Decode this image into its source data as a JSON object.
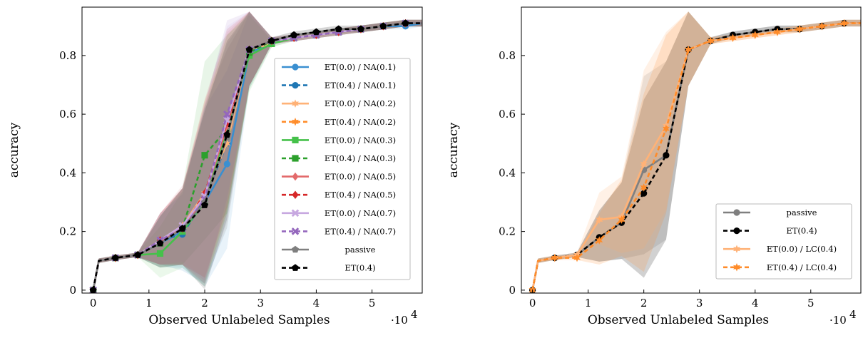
{
  "chart_data": [
    {
      "type": "line",
      "xlabel": "Observed Unlabeled Samples",
      "ylabel": "accuracy",
      "x_exponent_label": "·10",
      "x_exponent_power": "4",
      "xlim": [
        -0.2,
        5.9
      ],
      "ylim": [
        -0.01,
        0.965
      ],
      "xticks": [
        0,
        1,
        2,
        3,
        4,
        5
      ],
      "xtick_labels": [
        "0",
        "1",
        "2",
        "3",
        "4",
        "5"
      ],
      "yticks": [
        0,
        0.2,
        0.4,
        0.6,
        0.8
      ],
      "ytick_labels": [
        "0",
        "0.2",
        "0.4",
        "0.6",
        "0.8"
      ],
      "legend_position": "lower-right",
      "series": [
        {
          "name": "ET(0.0) / NA(0.1)",
          "color": "#3a8fd0",
          "dash": "solid",
          "marker": "circle",
          "x": [
            0,
            0.1,
            0.4,
            0.8,
            1.2,
            1.6,
            2.0,
            2.4,
            2.8,
            3.2,
            3.6,
            4.0,
            4.4,
            4.8,
            5.2,
            5.6,
            5.9
          ],
          "y": [
            0.0,
            0.1,
            0.11,
            0.12,
            0.16,
            0.2,
            0.3,
            0.43,
            0.81,
            0.84,
            0.86,
            0.87,
            0.88,
            0.89,
            0.9,
            0.9,
            0.91
          ]
        },
        {
          "name": "ET(0.4) / NA(0.1)",
          "color": "#1f77b4",
          "dash": "dashed",
          "marker": "circle",
          "x": [
            0,
            0.1,
            0.4,
            0.8,
            1.2,
            1.6,
            2.0,
            2.4,
            2.8,
            3.2,
            3.6,
            4.0,
            4.4,
            4.8,
            5.2,
            5.6,
            5.9
          ],
          "y": [
            0.0,
            0.1,
            0.11,
            0.12,
            0.17,
            0.19,
            0.31,
            0.5,
            0.82,
            0.85,
            0.86,
            0.87,
            0.88,
            0.89,
            0.9,
            0.91,
            0.91
          ]
        },
        {
          "name": "ET(0.0) / NA(0.2)",
          "color": "#ffb277",
          "dash": "solid",
          "marker": "star",
          "x": [
            0,
            0.1,
            0.4,
            0.8,
            1.2,
            1.6,
            2.0,
            2.4,
            2.8,
            3.2,
            3.6,
            4.0,
            4.4,
            4.8,
            5.2,
            5.6,
            5.9
          ],
          "y": [
            0.0,
            0.1,
            0.11,
            0.12,
            0.17,
            0.22,
            0.33,
            0.5,
            0.82,
            0.84,
            0.86,
            0.87,
            0.88,
            0.89,
            0.9,
            0.91,
            0.91
          ]
        },
        {
          "name": "ET(0.4) / NA(0.2)",
          "color": "#ff8c2a",
          "dash": "dashed",
          "marker": "star",
          "x": [
            0,
            0.1,
            0.4,
            0.8,
            1.2,
            1.6,
            2.0,
            2.4,
            2.8,
            3.2,
            3.6,
            4.0,
            4.4,
            4.8,
            5.2,
            5.6,
            5.9
          ],
          "y": [
            0.0,
            0.1,
            0.11,
            0.12,
            0.17,
            0.21,
            0.31,
            0.55,
            0.82,
            0.85,
            0.86,
            0.87,
            0.88,
            0.89,
            0.9,
            0.91,
            0.91
          ]
        },
        {
          "name": "ET(0.0) / NA(0.3)",
          "color": "#45c14a",
          "dash": "solid",
          "marker": "square",
          "x": [
            0,
            0.1,
            0.4,
            0.8,
            1.2,
            1.6,
            2.0,
            2.4,
            2.8,
            3.2,
            3.6,
            4.0,
            4.4,
            4.8,
            5.2,
            5.6,
            5.9
          ],
          "y": [
            0.0,
            0.1,
            0.11,
            0.12,
            0.125,
            0.2,
            0.3,
            0.55,
            0.8,
            0.84,
            0.86,
            0.87,
            0.88,
            0.89,
            0.9,
            0.91,
            0.91
          ]
        },
        {
          "name": "ET(0.4) / NA(0.3)",
          "color": "#2ca02c",
          "dash": "dashed",
          "marker": "square",
          "x": [
            0,
            0.1,
            0.4,
            0.8,
            1.2,
            1.6,
            2.0,
            2.4,
            2.8,
            3.2,
            3.6,
            4.0,
            4.4,
            4.8,
            5.2,
            5.6,
            5.9
          ],
          "y": [
            0.0,
            0.1,
            0.11,
            0.12,
            0.16,
            0.21,
            0.46,
            0.55,
            0.81,
            0.85,
            0.86,
            0.87,
            0.88,
            0.89,
            0.9,
            0.91,
            0.91
          ]
        },
        {
          "name": "ET(0.0) / NA(0.5)",
          "color": "#e36a6b",
          "dash": "solid",
          "marker": "diamond",
          "x": [
            0,
            0.1,
            0.4,
            0.8,
            1.2,
            1.6,
            2.0,
            2.4,
            2.8,
            3.2,
            3.6,
            4.0,
            4.4,
            4.8,
            5.2,
            5.6,
            5.9
          ],
          "y": [
            0.0,
            0.1,
            0.11,
            0.12,
            0.17,
            0.21,
            0.32,
            0.56,
            0.82,
            0.85,
            0.86,
            0.87,
            0.88,
            0.89,
            0.9,
            0.91,
            0.91
          ]
        },
        {
          "name": "ET(0.4) / NA(0.5)",
          "color": "#d62728",
          "dash": "dashed",
          "marker": "diamond",
          "x": [
            0,
            0.1,
            0.4,
            0.8,
            1.2,
            1.6,
            2.0,
            2.4,
            2.8,
            3.2,
            3.6,
            4.0,
            4.4,
            4.8,
            5.2,
            5.6,
            5.9
          ],
          "y": [
            0.0,
            0.1,
            0.11,
            0.12,
            0.17,
            0.21,
            0.33,
            0.57,
            0.82,
            0.85,
            0.86,
            0.87,
            0.88,
            0.89,
            0.9,
            0.91,
            0.91
          ]
        },
        {
          "name": "ET(0.0) / NA(0.7)",
          "color": "#c7a8e0",
          "dash": "solid",
          "marker": "cross",
          "x": [
            0,
            0.1,
            0.4,
            0.8,
            1.2,
            1.6,
            2.0,
            2.4,
            2.8,
            3.2,
            3.6,
            4.0,
            4.4,
            4.8,
            5.2,
            5.6,
            5.9
          ],
          "y": [
            0.0,
            0.1,
            0.11,
            0.12,
            0.17,
            0.22,
            0.32,
            0.58,
            0.82,
            0.85,
            0.86,
            0.87,
            0.88,
            0.89,
            0.9,
            0.91,
            0.91
          ]
        },
        {
          "name": "ET(0.4) / NA(0.7)",
          "color": "#9467bd",
          "dash": "dashed",
          "marker": "cross",
          "x": [
            0,
            0.1,
            0.4,
            0.8,
            1.2,
            1.6,
            2.0,
            2.4,
            2.8,
            3.2,
            3.6,
            4.0,
            4.4,
            4.8,
            5.2,
            5.6,
            5.9
          ],
          "y": [
            0.0,
            0.1,
            0.11,
            0.12,
            0.17,
            0.21,
            0.31,
            0.6,
            0.82,
            0.85,
            0.86,
            0.87,
            0.88,
            0.89,
            0.9,
            0.91,
            0.91
          ]
        },
        {
          "name": "passive",
          "color": "#7f7f7f",
          "dash": "solid",
          "marker": "pentagon",
          "x": [
            0,
            0.1,
            0.4,
            0.8,
            1.2,
            1.6,
            2.0,
            2.4,
            2.8,
            3.2,
            3.6,
            4.0,
            4.4,
            4.8,
            5.2,
            5.6,
            5.9
          ],
          "y": [
            0.0,
            0.1,
            0.11,
            0.12,
            0.16,
            0.21,
            0.3,
            0.52,
            0.82,
            0.85,
            0.87,
            0.88,
            0.89,
            0.89,
            0.9,
            0.91,
            0.91
          ]
        },
        {
          "name": "ET(0.4)",
          "color": "#000000",
          "dash": "dashed",
          "marker": "pentagon",
          "x": [
            0,
            0.1,
            0.4,
            0.8,
            1.2,
            1.6,
            2.0,
            2.4,
            2.8,
            3.2,
            3.6,
            4.0,
            4.4,
            4.8,
            5.2,
            5.6,
            5.9
          ],
          "y": [
            0.0,
            0.1,
            0.11,
            0.12,
            0.16,
            0.21,
            0.29,
            0.53,
            0.82,
            0.85,
            0.87,
            0.88,
            0.89,
            0.89,
            0.9,
            0.91,
            0.91
          ]
        }
      ]
    },
    {
      "type": "line",
      "xlabel": "Observed Unlabeled Samples",
      "ylabel": "accuracy",
      "x_exponent_label": "·10",
      "x_exponent_power": "4",
      "xlim": [
        -0.2,
        5.9
      ],
      "ylim": [
        -0.01,
        0.965
      ],
      "xticks": [
        0,
        1,
        2,
        3,
        4,
        5
      ],
      "xtick_labels": [
        "0",
        "1",
        "2",
        "3",
        "4",
        "5"
      ],
      "yticks": [
        0,
        0.2,
        0.4,
        0.6,
        0.8
      ],
      "ytick_labels": [
        "0",
        "0.2",
        "0.4",
        "0.6",
        "0.8"
      ],
      "legend_position": "lower-right",
      "series": [
        {
          "name": "passive",
          "color": "#7f7f7f",
          "dash": "solid",
          "marker": "circle",
          "x": [
            0,
            0.1,
            0.4,
            0.8,
            1.2,
            1.6,
            2.0,
            2.4,
            2.8,
            3.2,
            3.6,
            4.0,
            4.4,
            4.8,
            5.2,
            5.6,
            5.9
          ],
          "y": [
            0.0,
            0.1,
            0.11,
            0.12,
            0.18,
            0.23,
            0.41,
            0.46,
            0.82,
            0.85,
            0.87,
            0.88,
            0.89,
            0.89,
            0.9,
            0.91,
            0.91
          ]
        },
        {
          "name": "ET(0.4)",
          "color": "#000000",
          "dash": "dashed",
          "marker": "circle",
          "x": [
            0,
            0.1,
            0.4,
            0.8,
            1.2,
            1.6,
            2.0,
            2.4,
            2.8,
            3.2,
            3.6,
            4.0,
            4.4,
            4.8,
            5.2,
            5.6,
            5.9
          ],
          "y": [
            0.0,
            0.1,
            0.11,
            0.12,
            0.18,
            0.23,
            0.33,
            0.46,
            0.82,
            0.85,
            0.87,
            0.88,
            0.89,
            0.89,
            0.9,
            0.91,
            0.91
          ]
        },
        {
          "name": "ET(0.0) / LC(0.4)",
          "color": "#ffb277",
          "dash": "solid",
          "marker": "star",
          "x": [
            0,
            0.1,
            0.4,
            0.8,
            1.2,
            1.6,
            2.0,
            2.4,
            2.8,
            3.2,
            3.6,
            4.0,
            4.4,
            4.8,
            5.2,
            5.6,
            5.9
          ],
          "y": [
            0.0,
            0.1,
            0.11,
            0.12,
            0.24,
            0.25,
            0.43,
            0.56,
            0.82,
            0.85,
            0.86,
            0.87,
            0.88,
            0.89,
            0.9,
            0.91,
            0.91
          ]
        },
        {
          "name": "ET(0.4) / LC(0.4)",
          "color": "#ff8c2a",
          "dash": "dashed",
          "marker": "star",
          "x": [
            0,
            0.1,
            0.4,
            0.8,
            1.2,
            1.6,
            2.0,
            2.4,
            2.8,
            3.2,
            3.6,
            4.0,
            4.4,
            4.8,
            5.2,
            5.6,
            5.9
          ],
          "y": [
            0.0,
            0.1,
            0.11,
            0.11,
            0.17,
            0.24,
            0.35,
            0.55,
            0.82,
            0.85,
            0.86,
            0.87,
            0.88,
            0.89,
            0.9,
            0.91,
            0.91
          ]
        }
      ]
    }
  ]
}
